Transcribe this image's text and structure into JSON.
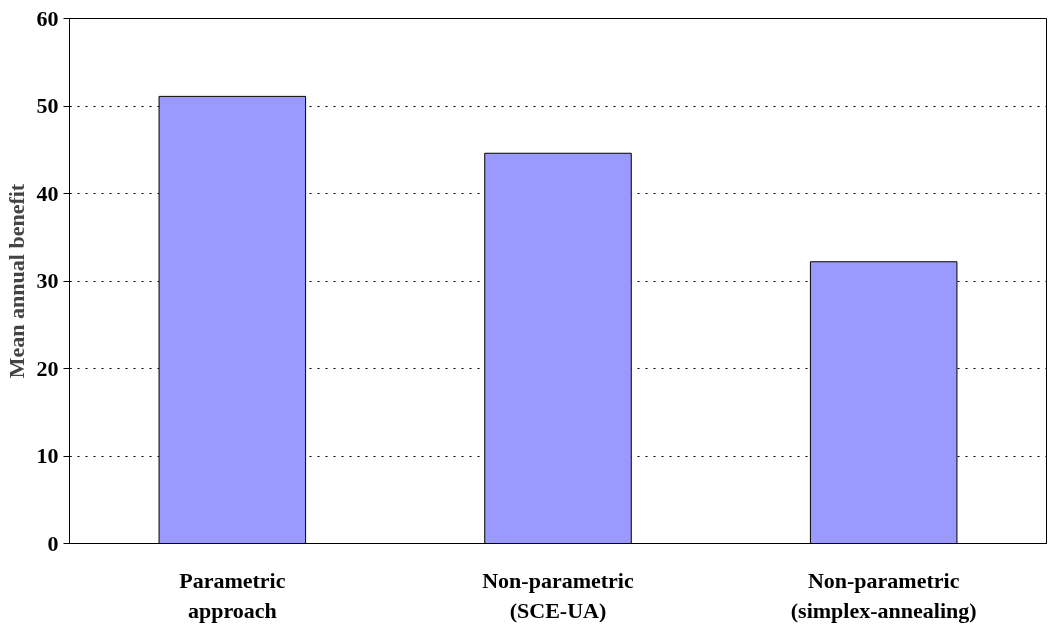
{
  "chart_data": {
    "type": "bar",
    "ylabel": "Mean annual benefit",
    "categories": [
      "Parametric\napproach",
      "Non-parametric\n(SCE-UA)",
      "Non-parametric\n(simplex-annealing)"
    ],
    "values": [
      51.1,
      44.6,
      32.2
    ],
    "color": "#9999ff",
    "ylim": [
      0,
      60
    ],
    "yticks": [
      0,
      10,
      20,
      30,
      40,
      50,
      60
    ],
    "grid": "y",
    "line_style": "dotted"
  }
}
